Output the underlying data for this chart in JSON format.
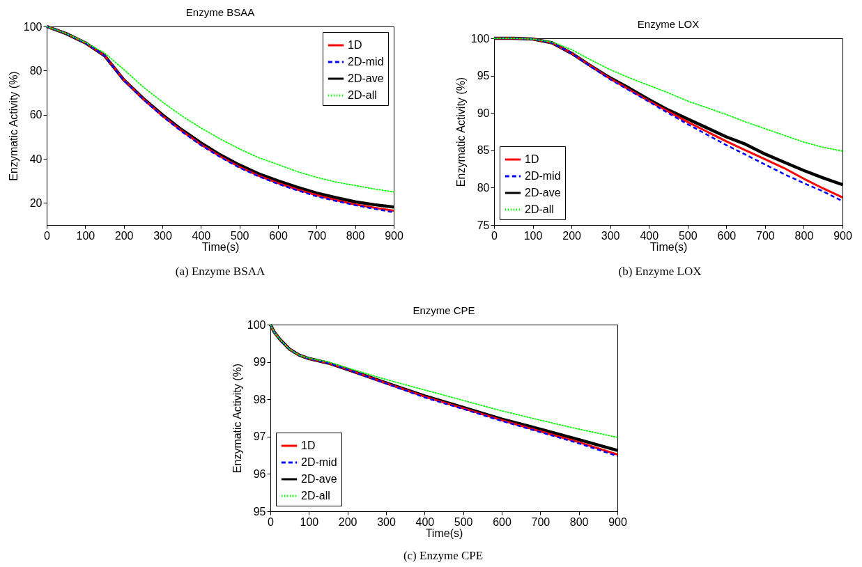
{
  "chart_data": [
    {
      "type": "line",
      "title": "Enzyme BSAA",
      "xlabel": "Time(s)",
      "ylabel": "Enzymatic Activity (%)",
      "annotations": [
        "(a) Enzyme BSAA"
      ],
      "xlim": [
        0,
        900
      ],
      "xticks": [
        0,
        100,
        200,
        300,
        400,
        500,
        600,
        700,
        800,
        900
      ],
      "ylim": [
        10,
        100
      ],
      "yticks": [
        20,
        40,
        60,
        80,
        100
      ],
      "grid": false,
      "legend": "top right",
      "x": [
        0,
        50,
        100,
        150,
        200,
        250,
        300,
        350,
        400,
        450,
        500,
        550,
        600,
        650,
        700,
        750,
        800,
        850,
        900
      ],
      "series": [
        {
          "name": "1D",
          "color": "#ff0000",
          "line_style": "solid",
          "values": [
            100,
            96.8,
            92.6,
            86.8,
            75.8,
            67.2,
            59.5,
            52.7,
            46.5,
            41.1,
            36.3,
            32.3,
            29,
            26.1,
            23.5,
            21.3,
            19.3,
            17.8,
            16.5
          ]
        },
        {
          "name": "2D-mid",
          "color": "#0000ff",
          "line_style": "dashed",
          "values": [
            100,
            96.8,
            92.6,
            86.8,
            75.6,
            67,
            59.3,
            52.4,
            46.2,
            40.8,
            36,
            32,
            28.6,
            25.7,
            23,
            20.9,
            19,
            17.3,
            15.8
          ]
        },
        {
          "name": "2D-ave",
          "color": "#000000",
          "line_style": "solid",
          "values": [
            100,
            96.8,
            92.6,
            86.8,
            75.8,
            67.4,
            60,
            53.2,
            47.2,
            41.8,
            37.2,
            33.2,
            30,
            27.1,
            24.5,
            22.4,
            20.5,
            19.2,
            18.1
          ]
        },
        {
          "name": "2D-all",
          "color": "#00ff00",
          "line_style": "dotted",
          "values": [
            100,
            96.9,
            92.8,
            88,
            80.5,
            72.6,
            65.8,
            59.5,
            54,
            49,
            44.5,
            40.5,
            37.4,
            34.2,
            31.6,
            29.5,
            27.9,
            26.3,
            25
          ]
        }
      ]
    },
    {
      "type": "line",
      "title": "Enzyme LOX",
      "xlabel": "Time(s)",
      "ylabel": "Enzymatic Activity (%)",
      "annotations": [
        "(b) Enzyme LOX"
      ],
      "xlim": [
        0,
        900
      ],
      "xticks": [
        0,
        100,
        200,
        300,
        400,
        500,
        600,
        700,
        800,
        900
      ],
      "ylim": [
        75,
        100
      ],
      "yticks": [
        75,
        80,
        85,
        90,
        95,
        100
      ],
      "grid": false,
      "legend": "bottom left",
      "x": [
        0,
        50,
        100,
        150,
        200,
        250,
        300,
        350,
        400,
        450,
        500,
        550,
        600,
        650,
        700,
        750,
        800,
        850,
        900
      ],
      "series": [
        {
          "name": "1D",
          "color": "#ff0000",
          "line_style": "solid",
          "values": [
            100,
            100,
            99.9,
            99.4,
            98,
            96.3,
            94.6,
            93.1,
            91.6,
            90.2,
            88.8,
            87.5,
            86.2,
            85,
            83.8,
            82.6,
            81.2,
            79.9,
            78.7
          ]
        },
        {
          "name": "2D-mid",
          "color": "#0000ff",
          "line_style": "dashed",
          "values": [
            100,
            100,
            99.9,
            99.4,
            98,
            96.2,
            94.5,
            93,
            91.5,
            90,
            88.5,
            87.1,
            85.7,
            84.4,
            83.1,
            81.8,
            80.6,
            79.5,
            78.2
          ]
        },
        {
          "name": "2D-ave",
          "color": "#000000",
          "line_style": "solid",
          "values": [
            100,
            100,
            99.9,
            99.4,
            98,
            96.3,
            94.7,
            93.3,
            91.8,
            90.4,
            89.2,
            88,
            86.8,
            85.8,
            84.5,
            83.4,
            82.3,
            81.3,
            80.4
          ]
        },
        {
          "name": "2D-all",
          "color": "#00ff00",
          "line_style": "dotted",
          "values": [
            100,
            100,
            99.9,
            99.5,
            98.5,
            97.1,
            95.8,
            94.7,
            93.7,
            92.7,
            91.6,
            90.7,
            89.8,
            88.8,
            87.9,
            87,
            86.1,
            85.4,
            84.9
          ]
        }
      ]
    },
    {
      "type": "line",
      "title": "Enzyme CPE",
      "xlabel": "Time(s)",
      "ylabel": "Enzymatic Activity (%)",
      "annotations": [
        "(c) Enzyme CPE"
      ],
      "xlim": [
        0,
        900
      ],
      "xticks": [
        0,
        100,
        200,
        300,
        400,
        500,
        600,
        700,
        800,
        900
      ],
      "ylim": [
        95,
        100
      ],
      "yticks": [
        95,
        96,
        97,
        98,
        99,
        100
      ],
      "grid": false,
      "legend": "bottom left",
      "x": [
        0,
        10,
        25,
        50,
        75,
        100,
        150,
        200,
        300,
        400,
        500,
        600,
        700,
        800,
        900
      ],
      "series": [
        {
          "name": "1D",
          "color": "#ff0000",
          "line_style": "solid",
          "values": [
            100,
            99.8,
            99.6,
            99.34,
            99.18,
            99.09,
            98.97,
            98.8,
            98.43,
            98.07,
            97.76,
            97.44,
            97.14,
            96.85,
            96.52
          ]
        },
        {
          "name": "2D-mid",
          "color": "#0000ff",
          "line_style": "dashed",
          "values": [
            100,
            99.8,
            99.6,
            99.34,
            99.18,
            99.09,
            98.97,
            98.8,
            98.42,
            98.05,
            97.74,
            97.42,
            97.12,
            96.82,
            96.48
          ]
        },
        {
          "name": "2D-ave",
          "color": "#000000",
          "line_style": "solid",
          "values": [
            100,
            99.8,
            99.6,
            99.34,
            99.18,
            99.09,
            98.97,
            98.8,
            98.44,
            98.09,
            97.78,
            97.47,
            97.2,
            96.92,
            96.63
          ]
        },
        {
          "name": "2D-all",
          "color": "#00ff00",
          "line_style": "dotted",
          "values": [
            100,
            99.8,
            99.6,
            99.34,
            99.18,
            99.1,
            99,
            98.84,
            98.53,
            98.25,
            97.97,
            97.69,
            97.44,
            97.2,
            96.98
          ]
        }
      ]
    }
  ]
}
